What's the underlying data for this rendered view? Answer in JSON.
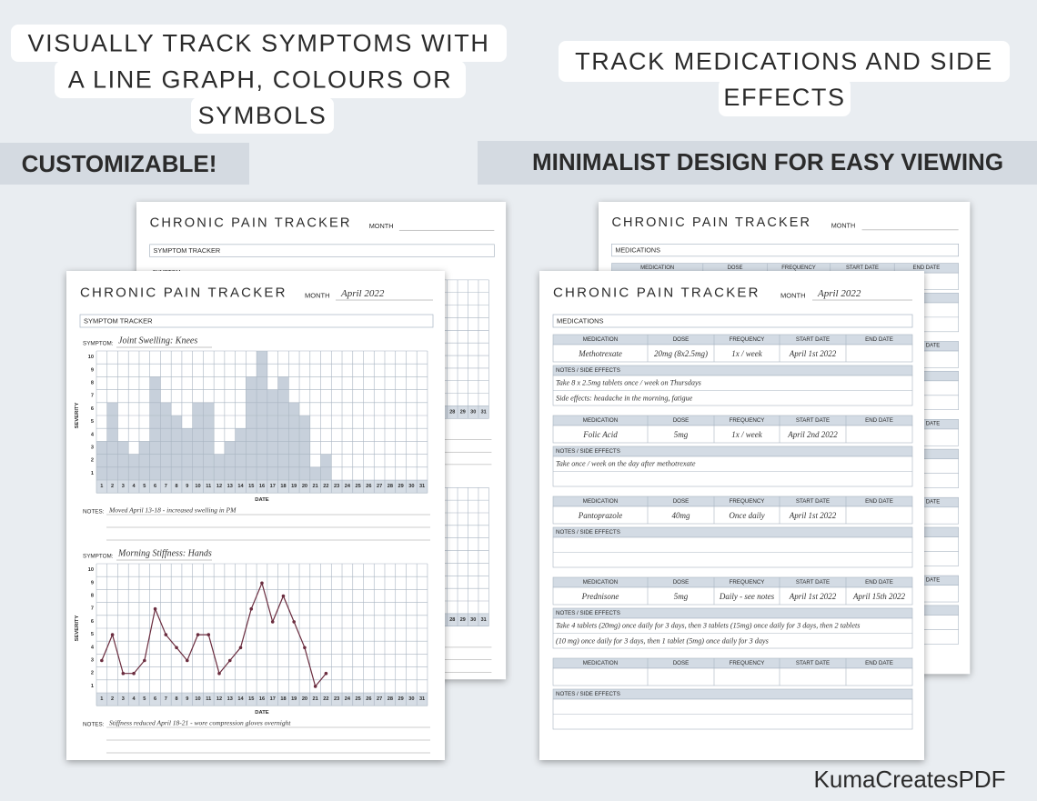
{
  "banners": {
    "symptoms": [
      "VISUALLY TRACK SYMPTOMS WITH",
      "A LINE GRAPH, COLOURS OR",
      "SYMBOLS"
    ],
    "medications": [
      "TRACK MEDICATIONS AND SIDE",
      "EFFECTS"
    ],
    "customizable": "CUSTOMIZABLE!",
    "design": "MINIMALIST DESIGN FOR EASY VIEWING"
  },
  "symptom_sheet": {
    "title": "CHRONIC PAIN TRACKER",
    "month_label": "MONTH",
    "month": "April 2022",
    "section": "SYMPTOM TRACKER",
    "symptom_label": "SYMPTOM:",
    "y_label": "SEVERITY",
    "x_label": "DATE",
    "notes_label": "NOTES:",
    "levels": [
      1,
      2,
      3,
      4,
      5,
      6,
      7,
      8,
      9,
      10
    ],
    "days": [
      1,
      2,
      3,
      4,
      5,
      6,
      7,
      8,
      9,
      10,
      11,
      12,
      13,
      14,
      15,
      16,
      17,
      18,
      19,
      20,
      21,
      22,
      23,
      24,
      25,
      26,
      27,
      28,
      29,
      30,
      31
    ],
    "charts": [
      {
        "type": "bar",
        "symptom": "Joint Swelling: Knees",
        "values": [
          3,
          6,
          3,
          2,
          3,
          8,
          6,
          5,
          4,
          6,
          6,
          2,
          3,
          4,
          8,
          10,
          7,
          8,
          6,
          5,
          1,
          2
        ],
        "notes": "Moved April 13-18 - increased swelling in PM"
      },
      {
        "type": "line",
        "symptom": "Morning Stiffness: Hands",
        "values": [
          3,
          5,
          2,
          2,
          3,
          7,
          5,
          4,
          3,
          5,
          5,
          2,
          3,
          4,
          7,
          9,
          6,
          8,
          6,
          4,
          1,
          2
        ],
        "notes": "Stiffness reduced April 18-21 - wore compression gloves overnight"
      }
    ]
  },
  "medication_sheet": {
    "title": "CHRONIC PAIN TRACKER",
    "month_label": "MONTH",
    "month": "April 2022",
    "section": "MEDICATIONS",
    "columns": [
      "MEDICATION",
      "DOSE",
      "FREQUENCY",
      "START DATE",
      "END DATE"
    ],
    "notes_label": "NOTES / SIDE EFFECTS",
    "entries": [
      {
        "medication": "Methotrexate",
        "dose": "20mg (8x2.5mg)",
        "frequency": "1x / week",
        "start_date": "April 1st 2022",
        "notes": [
          "Take 8 x 2.5mg tablets once / week on Thursdays",
          "Side effects: headache in the morning, fatigue"
        ]
      },
      {
        "medication": "Folic Acid",
        "dose": "5mg",
        "frequency": "1x / week",
        "start_date": "April 2nd 2022",
        "notes": [
          "Take once / week on the day after methotrexate"
        ]
      },
      {
        "medication": "Pantoprazole",
        "dose": "40mg",
        "frequency": "Once daily",
        "start_date": "April 1st 2022",
        "notes": []
      },
      {
        "medication": "Prednisone",
        "dose": "5mg",
        "frequency": "Daily - see notes",
        "start_date": "April 1st 2022",
        "end_date": "April 15th 2022",
        "notes": [
          "Take 4 tablets (20mg) once daily for 3 days, then 3 tablets (15mg) once daily for 3 days, then 2 tablets",
          "(10 mg) once daily for 3 days, then 1 tablet (5mg) once daily for 3 days"
        ]
      },
      {
        "notes": []
      }
    ]
  },
  "footer": "KumaCreatesPDF"
}
